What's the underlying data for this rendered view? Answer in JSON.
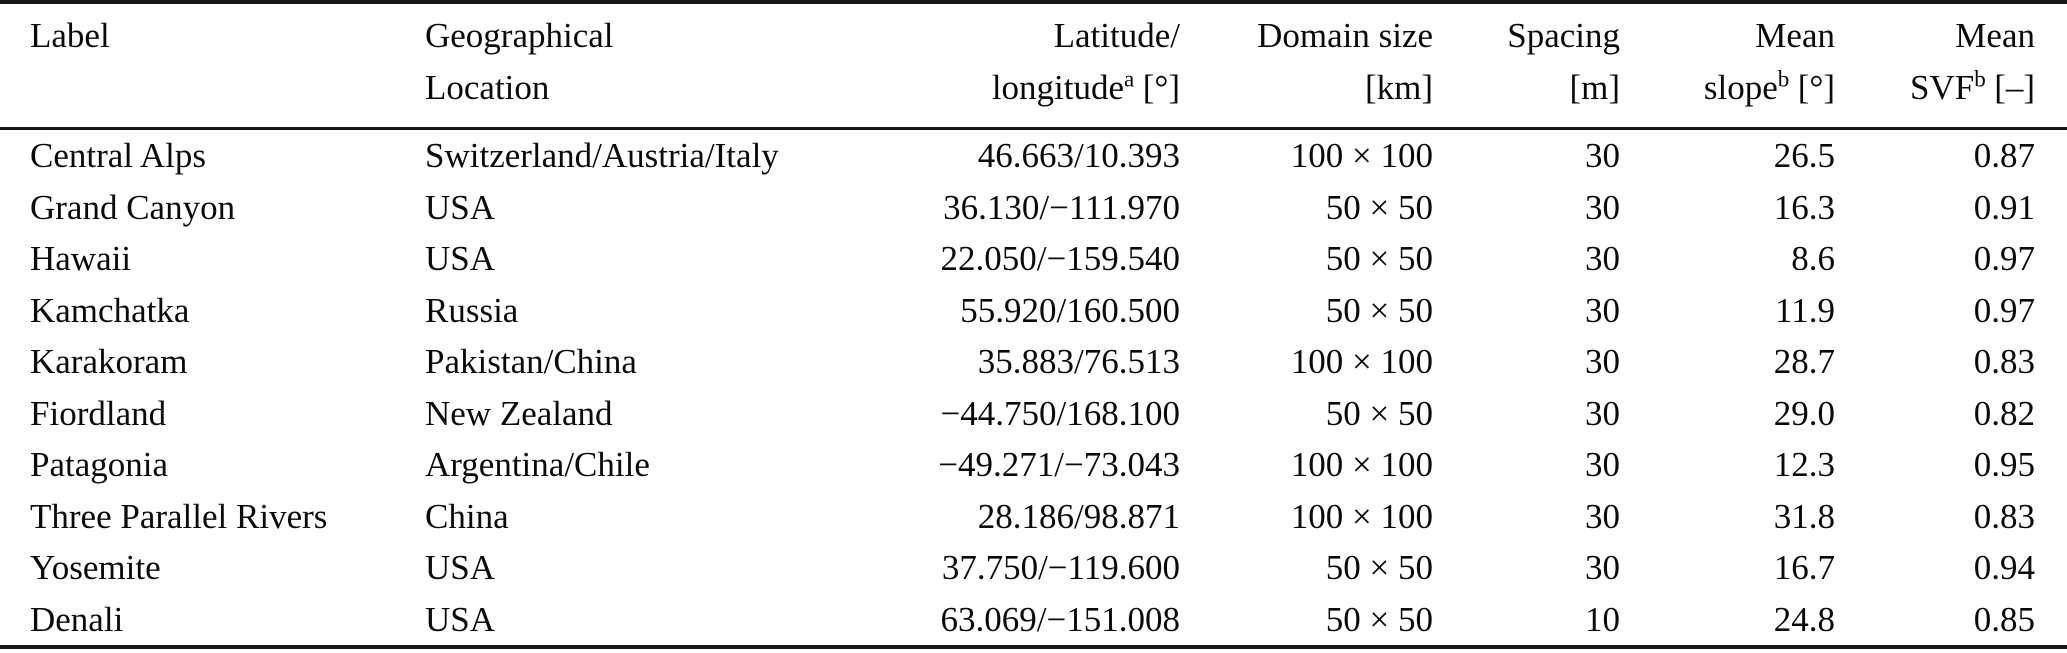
{
  "table": {
    "header": {
      "label": {
        "line1": "Label"
      },
      "location": {
        "line1": "Geographical",
        "line2": "Location"
      },
      "latlon": {
        "line1": "Latitude/",
        "base": "longitude",
        "sup": "a",
        "unit": "[°]"
      },
      "domain": {
        "line1": "Domain size",
        "unit": "[km]"
      },
      "spacing": {
        "line1": "Spacing",
        "unit": "[m]"
      },
      "slope": {
        "line1": "Mean",
        "base": "slope",
        "sup": "b",
        "unit": "[°]"
      },
      "svf": {
        "line1": "Mean",
        "base": "SVF",
        "sup": "b",
        "unit": "[–]"
      }
    },
    "rows": [
      [
        "Central Alps",
        "Switzerland/Austria/Italy",
        "46.663/10.393",
        "100 × 100",
        "30",
        "26.5",
        "0.87"
      ],
      [
        "Grand Canyon",
        "USA",
        "36.130/−111.970",
        "50 × 50",
        "30",
        "16.3",
        "0.91"
      ],
      [
        "Hawaii",
        "USA",
        "22.050/−159.540",
        "50 × 50",
        "30",
        "8.6",
        "0.97"
      ],
      [
        "Kamchatka",
        "Russia",
        "55.920/160.500",
        "50 × 50",
        "30",
        "11.9",
        "0.97"
      ],
      [
        "Karakoram",
        "Pakistan/China",
        "35.883/76.513",
        "100 × 100",
        "30",
        "28.7",
        "0.83"
      ],
      [
        "Fiordland",
        "New Zealand",
        "−44.750/168.100",
        "50 × 50",
        "30",
        "29.0",
        "0.82"
      ],
      [
        "Patagonia",
        "Argentina/Chile",
        "−49.271/−73.043",
        "100 × 100",
        "30",
        "12.3",
        "0.95"
      ],
      [
        "Three Parallel Rivers",
        "China",
        "28.186/98.871",
        "100 × 100",
        "30",
        "31.8",
        "0.83"
      ],
      [
        "Yosemite",
        "USA",
        "37.750/−119.600",
        "50 × 50",
        "30",
        "16.7",
        "0.94"
      ],
      [
        "Denali",
        "USA",
        "63.069/−151.008",
        "50 × 50",
        "10",
        "24.8",
        "0.85"
      ]
    ]
  }
}
